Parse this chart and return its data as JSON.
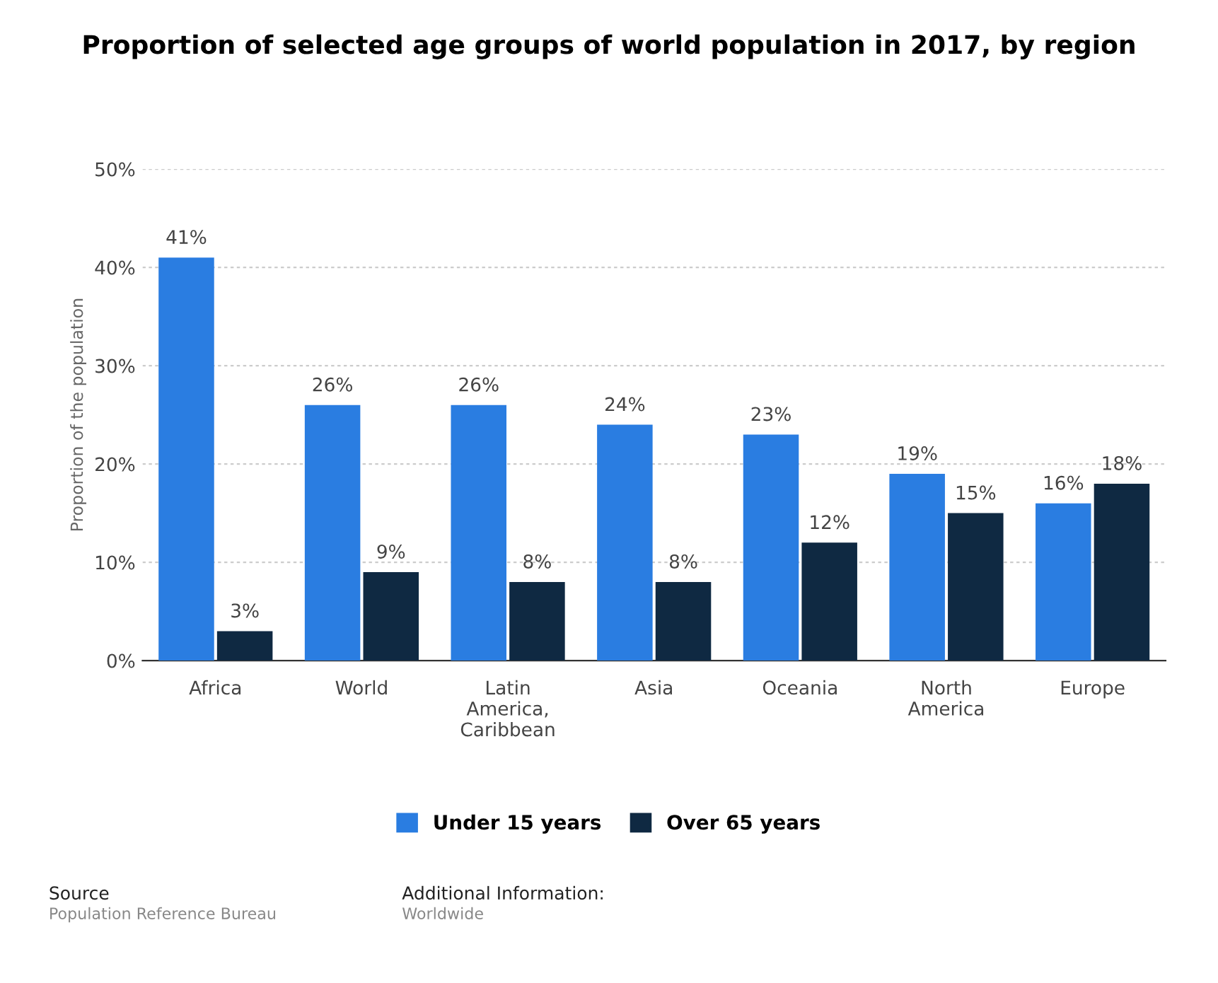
{
  "chart_data": {
    "type": "bar",
    "title": "Proportion of selected age groups of world population in 2017, by region",
    "ylabel": "Proportion of the population",
    "categories": [
      "Africa",
      "World",
      "Latin\nAmerica,\nCaribbean",
      "Asia",
      "Oceania",
      "North\nAmerica",
      "Europe"
    ],
    "series": [
      {
        "name": "Under 15 years",
        "color": "#2a7de1",
        "values": [
          41,
          26,
          26,
          24,
          23,
          19,
          16
        ],
        "value_labels": [
          "41%",
          "26%",
          "26%",
          "24%",
          "23%",
          "19%",
          "16%"
        ]
      },
      {
        "name": "Over 65 years",
        "color": "#0f2942",
        "values": [
          3,
          9,
          8,
          8,
          12,
          15,
          18
        ],
        "value_labels": [
          "3%",
          "9%",
          "8%",
          "8%",
          "12%",
          "15%",
          "18%"
        ]
      }
    ],
    "ylim": [
      0,
      50
    ],
    "yticks": [
      {
        "value": 0,
        "label": "0%"
      },
      {
        "value": 10,
        "label": "10%"
      },
      {
        "value": 20,
        "label": "20%"
      },
      {
        "value": 30,
        "label": "30%"
      },
      {
        "value": 40,
        "label": "40%"
      },
      {
        "value": 50,
        "label": "50%"
      }
    ],
    "grid": "y",
    "legend": "bottom",
    "annotations": [
      "Source",
      "Population Reference Bureau",
      "Additional Information:",
      "Worldwide"
    ]
  }
}
